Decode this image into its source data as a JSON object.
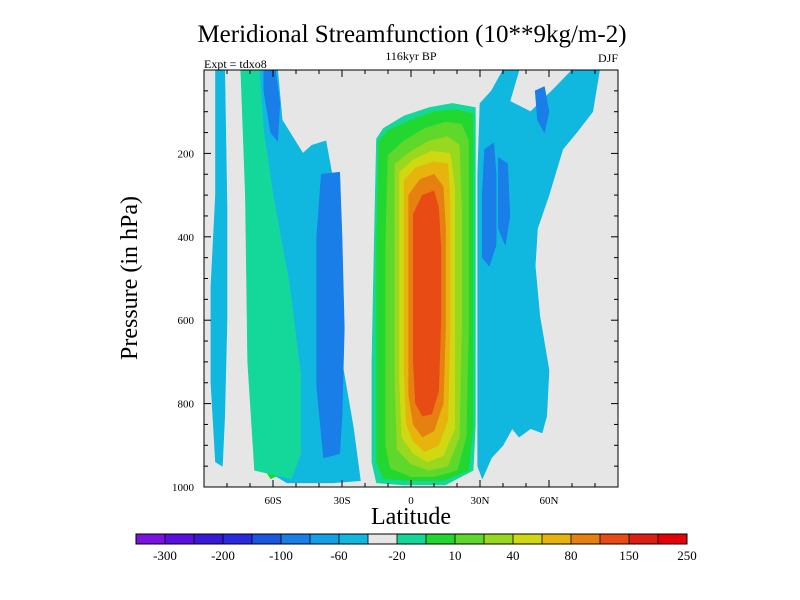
{
  "chart_data": {
    "type": "contour",
    "title": "Meridional Streamfunction (10**9kg/m-2)",
    "subtitle_center": "116kyr BP",
    "subtitle_left": "Expt = tdxo8",
    "subtitle_right": "DJF",
    "xlabel": "Latitude",
    "ylabel": "Pressure (in hPa)",
    "xlim": [
      -90,
      90
    ],
    "ylim": [
      0,
      1000
    ],
    "y_inverted": true,
    "x_ticks": [
      {
        "value": -60,
        "label": "60S"
      },
      {
        "value": -30,
        "label": "30S"
      },
      {
        "value": 0,
        "label": "0"
      },
      {
        "value": 30,
        "label": "30N"
      },
      {
        "value": 60,
        "label": "60N"
      }
    ],
    "y_ticks": [
      {
        "value": 200,
        "label": "200"
      },
      {
        "value": 400,
        "label": "400"
      },
      {
        "value": 600,
        "label": "600"
      },
      {
        "value": 800,
        "label": "800"
      },
      {
        "value": 1000,
        "label": "1000"
      }
    ],
    "missing_color": "#e6e6e6",
    "colorbar": {
      "colors": [
        "#7a12e0",
        "#5a10e0",
        "#3a18d8",
        "#2a2ae0",
        "#1a56e0",
        "#1a7ee8",
        "#12a0e6",
        "#10b8e0",
        "#e6e6e6",
        "#14d89a",
        "#22d830",
        "#5ed82a",
        "#98d81e",
        "#d0d812",
        "#e6b40c",
        "#e68010",
        "#e84c14",
        "#dc1e14",
        "#e6000a"
      ],
      "labels": [
        {
          "after_index": 0,
          "text": "-300"
        },
        {
          "after_index": 2,
          "text": "-200"
        },
        {
          "after_index": 4,
          "text": "-100"
        },
        {
          "after_index": 6,
          "text": "-60"
        },
        {
          "after_index": 8,
          "text": "-20"
        },
        {
          "after_index": 10,
          "text": "10"
        },
        {
          "after_index": 12,
          "text": "40"
        },
        {
          "after_index": 14,
          "text": "80"
        },
        {
          "after_index": 16,
          "text": "150"
        },
        {
          "after_index": 18,
          "text": "250"
        }
      ]
    },
    "regions": [
      {
        "name": "south-polar-cell",
        "color": "#10b8e0",
        "points": [
          [
            -85,
            0
          ],
          [
            -81,
            0
          ],
          [
            -80,
            330
          ],
          [
            -80,
            600
          ],
          [
            -81,
            830
          ],
          [
            -82,
            950
          ],
          [
            -85,
            940
          ],
          [
            -87,
            750
          ],
          [
            -87,
            520
          ],
          [
            -85,
            300
          ]
        ]
      },
      {
        "name": "southern-ferrel-cell-outer",
        "color": "#10b8e0",
        "points": [
          [
            -74,
            0
          ],
          [
            -58,
            0
          ],
          [
            -56,
            120
          ],
          [
            -47,
            200
          ],
          [
            -43,
            180
          ],
          [
            -37,
            170
          ],
          [
            -34,
            260
          ],
          [
            -30,
            530
          ],
          [
            -30,
            700
          ],
          [
            -25,
            860
          ],
          [
            -22,
            985
          ],
          [
            -34,
            990
          ],
          [
            -54,
            990
          ],
          [
            -66,
            950
          ],
          [
            -70,
            700
          ],
          [
            -71,
            300
          ]
        ]
      },
      {
        "name": "southern-ferrel-cell-core",
        "color": "#1a7ee8",
        "points": [
          [
            -64,
            0
          ],
          [
            -59,
            0
          ],
          [
            -57,
            80
          ],
          [
            -58,
            170
          ],
          [
            -61,
            150
          ],
          [
            -64,
            50
          ]
        ]
      },
      {
        "name": "southern-ferrel-cell-core-2",
        "color": "#1a7ee8",
        "points": [
          [
            -39,
            250
          ],
          [
            -31,
            245
          ],
          [
            -30,
            400
          ],
          [
            -29,
            620
          ],
          [
            -30,
            830
          ],
          [
            -31,
            920
          ],
          [
            -38,
            930
          ],
          [
            -41,
            760
          ],
          [
            -41,
            400
          ]
        ]
      },
      {
        "name": "southern-hadley-cell",
        "color": "#22d830",
        "points": [
          [
            -73,
            0
          ],
          [
            -67,
            0
          ],
          [
            -66,
            120
          ],
          [
            -61,
            330
          ],
          [
            -55,
            500
          ],
          [
            -50,
            700
          ],
          [
            -50,
            900
          ],
          [
            -53,
            960
          ],
          [
            -61,
            980
          ],
          [
            -67,
            930
          ],
          [
            -70,
            700
          ],
          [
            -71,
            300
          ]
        ]
      },
      {
        "name": "southern-hadley-cell-outer",
        "color": "#14d89a",
        "points": [
          [
            -74,
            0
          ],
          [
            -66,
            0
          ],
          [
            -64,
            150
          ],
          [
            -60,
            300
          ],
          [
            -53,
            510
          ],
          [
            -48,
            730
          ],
          [
            -48,
            920
          ],
          [
            -52,
            980
          ],
          [
            -68,
            960
          ],
          [
            -71,
            700
          ],
          [
            -72,
            300
          ]
        ]
      },
      {
        "name": "tropical-10",
        "color": "#14d89a",
        "points": [
          [
            -15,
            165
          ],
          [
            -12,
            140
          ],
          [
            -3,
            110
          ],
          [
            8,
            90
          ],
          [
            18,
            80
          ],
          [
            28,
            90
          ],
          [
            28,
            200
          ],
          [
            28,
            620
          ],
          [
            28,
            850
          ],
          [
            27,
            960
          ],
          [
            15,
            995
          ],
          [
            -3,
            995
          ],
          [
            -15,
            990
          ],
          [
            -17,
            940
          ],
          [
            -17,
            700
          ],
          [
            -16,
            420
          ]
        ]
      },
      {
        "name": "tropical-20",
        "color": "#22d830",
        "points": [
          [
            -14,
            170
          ],
          [
            -10,
            145
          ],
          [
            0,
            120
          ],
          [
            10,
            100
          ],
          [
            20,
            95
          ],
          [
            27,
            105
          ],
          [
            27,
            230
          ],
          [
            27,
            620
          ],
          [
            27,
            860
          ],
          [
            25,
            960
          ],
          [
            14,
            985
          ],
          [
            0,
            985
          ],
          [
            -12,
            980
          ],
          [
            -15,
            940
          ],
          [
            -15,
            700
          ],
          [
            -15,
            420
          ]
        ]
      },
      {
        "name": "tropical-40",
        "color": "#5ed82a",
        "points": [
          [
            -10,
            205
          ],
          [
            -3,
            170
          ],
          [
            6,
            140
          ],
          [
            15,
            125
          ],
          [
            22,
            130
          ],
          [
            25,
            170
          ],
          [
            25,
            620
          ],
          [
            24,
            880
          ],
          [
            20,
            960
          ],
          [
            10,
            975
          ],
          [
            0,
            975
          ],
          [
            -9,
            955
          ],
          [
            -11,
            900
          ],
          [
            -11,
            700
          ],
          [
            -11,
            420
          ]
        ]
      },
      {
        "name": "tropical-60",
        "color": "#98d81e",
        "points": [
          [
            -7,
            225
          ],
          [
            0,
            195
          ],
          [
            8,
            170
          ],
          [
            16,
            160
          ],
          [
            21,
            180
          ],
          [
            22,
            330
          ],
          [
            22,
            620
          ],
          [
            21,
            880
          ],
          [
            16,
            950
          ],
          [
            8,
            960
          ],
          [
            0,
            945
          ],
          [
            -6,
            910
          ],
          [
            -7,
            760
          ],
          [
            -7,
            500
          ]
        ]
      },
      {
        "name": "tropical-80",
        "color": "#d0d812",
        "points": [
          [
            -5,
            245
          ],
          [
            1,
            215
          ],
          [
            9,
            195
          ],
          [
            17,
            200
          ],
          [
            19,
            280
          ],
          [
            19,
            620
          ],
          [
            19,
            860
          ],
          [
            14,
            925
          ],
          [
            7,
            940
          ],
          [
            1,
            920
          ],
          [
            -4,
            880
          ],
          [
            -5,
            740
          ],
          [
            -5,
            500
          ]
        ]
      },
      {
        "name": "tropical-100",
        "color": "#e6b40c",
        "points": [
          [
            -3,
            265
          ],
          [
            2,
            235
          ],
          [
            10,
            220
          ],
          [
            16,
            225
          ],
          [
            17,
            320
          ],
          [
            17,
            620
          ],
          [
            16,
            840
          ],
          [
            12,
            900
          ],
          [
            6,
            915
          ],
          [
            1,
            890
          ],
          [
            -2,
            850
          ],
          [
            -3,
            720
          ],
          [
            -3,
            520
          ]
        ]
      },
      {
        "name": "tropical-150",
        "color": "#e68010",
        "points": [
          [
            -1,
            300
          ],
          [
            4,
            262
          ],
          [
            10,
            250
          ],
          [
            14,
            280
          ],
          [
            15,
            380
          ],
          [
            15,
            620
          ],
          [
            14,
            800
          ],
          [
            10,
            865
          ],
          [
            5,
            880
          ],
          [
            1,
            850
          ],
          [
            -1,
            780
          ],
          [
            -1,
            560
          ]
        ]
      },
      {
        "name": "tropical-200",
        "color": "#e84c14",
        "points": [
          [
            1,
            345
          ],
          [
            5,
            300
          ],
          [
            10,
            290
          ],
          [
            12,
            330
          ],
          [
            13,
            430
          ],
          [
            13,
            600
          ],
          [
            12,
            770
          ],
          [
            9,
            825
          ],
          [
            5,
            830
          ],
          [
            2,
            800
          ],
          [
            1,
            700
          ],
          [
            1,
            520
          ]
        ]
      },
      {
        "name": "northern-ferrel-cell",
        "color": "#10b8e0",
        "points": [
          [
            30,
            80
          ],
          [
            35,
            50
          ],
          [
            40,
            0
          ],
          [
            47,
            0
          ],
          [
            43,
            75
          ],
          [
            52,
            100
          ],
          [
            63,
            40
          ],
          [
            70,
            0
          ],
          [
            82,
            0
          ],
          [
            79,
            100
          ],
          [
            72,
            150
          ],
          [
            66,
            190
          ],
          [
            60,
            300
          ],
          [
            55,
            380
          ],
          [
            54,
            470
          ],
          [
            56,
            590
          ],
          [
            60,
            720
          ],
          [
            59,
            830
          ],
          [
            57,
            870
          ],
          [
            52,
            860
          ],
          [
            47,
            880
          ],
          [
            44,
            860
          ],
          [
            40,
            900
          ],
          [
            35,
            930
          ],
          [
            31,
            980
          ],
          [
            29,
            950
          ],
          [
            29,
            620
          ],
          [
            29,
            250
          ]
        ]
      },
      {
        "name": "northern-ferrel-core-1",
        "color": "#1a7ee8",
        "points": [
          [
            32,
            190
          ],
          [
            36,
            175
          ],
          [
            37,
            250
          ],
          [
            37,
            420
          ],
          [
            34,
            470
          ],
          [
            31,
            450
          ],
          [
            31,
            300
          ]
        ]
      },
      {
        "name": "northern-ferrel-core-2",
        "color": "#1a7ee8",
        "points": [
          [
            38,
            210
          ],
          [
            42,
            225
          ],
          [
            43,
            350
          ],
          [
            41,
            420
          ],
          [
            38,
            380
          ]
        ]
      },
      {
        "name": "northern-ferrel-core-3",
        "color": "#1a7ee8",
        "points": [
          [
            54,
            50
          ],
          [
            58,
            40
          ],
          [
            60,
            100
          ],
          [
            58,
            150
          ],
          [
            55,
            120
          ]
        ]
      }
    ]
  }
}
